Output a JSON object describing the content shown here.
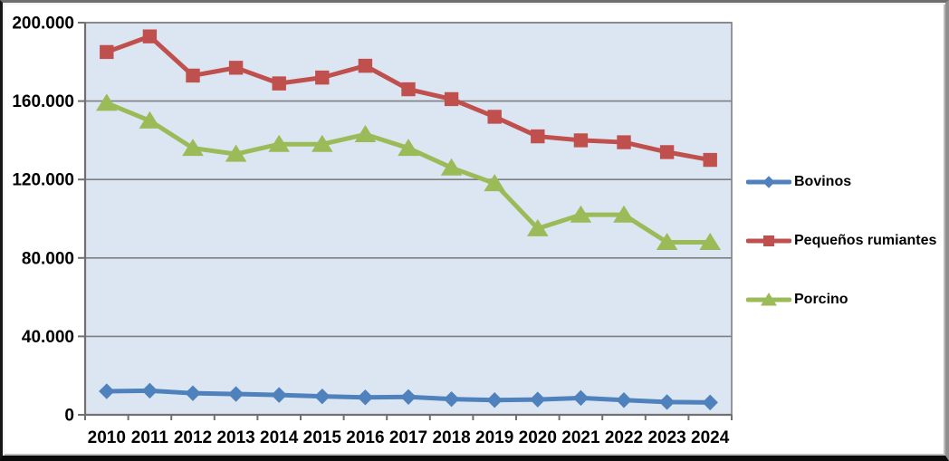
{
  "chart_data": {
    "type": "line",
    "title": "",
    "xlabel": "",
    "ylabel": "",
    "categories": [
      "2010",
      "2011",
      "2012",
      "2013",
      "2014",
      "2015",
      "2016",
      "2017",
      "2018",
      "2019",
      "2020",
      "2021",
      "2022",
      "2023",
      "2024"
    ],
    "series": [
      {
        "name": "Bovinos",
        "color": "#4F81BD",
        "marker": "diamond",
        "values": [
          12000,
          12300,
          11000,
          10600,
          10100,
          9400,
          8900,
          9100,
          8000,
          7500,
          7800,
          8600,
          7500,
          6500,
          6300
        ]
      },
      {
        "name": "Pequeños rumiantes",
        "color": "#C0504D",
        "marker": "square",
        "values": [
          185000,
          193000,
          173000,
          177000,
          169000,
          172000,
          178000,
          166000,
          161000,
          152000,
          142000,
          140000,
          139000,
          134000,
          130000
        ]
      },
      {
        "name": "Porcino",
        "color": "#9BBB59",
        "marker": "triangle",
        "values": [
          159000,
          150000,
          136000,
          133000,
          138000,
          138000,
          143000,
          136000,
          126000,
          118000,
          95000,
          102000,
          102000,
          88000,
          88000
        ]
      }
    ],
    "ylim": [
      0,
      200000
    ],
    "y_ticks": [
      {
        "value": 0,
        "label": "0"
      },
      {
        "value": 40000,
        "label": "40.000"
      },
      {
        "value": 80000,
        "label": "80.000"
      },
      {
        "value": 120000,
        "label": "120.000"
      },
      {
        "value": 160000,
        "label": "160.000"
      },
      {
        "value": 200000,
        "label": "200.000"
      }
    ],
    "grid": "horizontal",
    "legend_position": "right",
    "colors": {
      "plot_background": "#DCE6F2",
      "gridline": "#7F7F7F",
      "axis_line": "#707070",
      "tick": "#707070",
      "axis_text": "#000000"
    }
  }
}
